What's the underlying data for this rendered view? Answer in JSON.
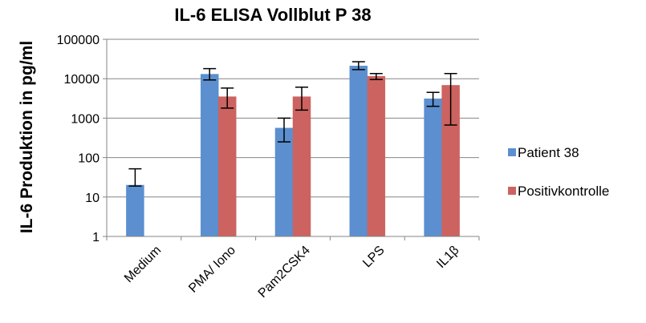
{
  "chart_data": {
    "type": "bar",
    "title": "IL-6 ELISA Vollblut P 38",
    "xlabel": "",
    "ylabel": "IL-6 Produktion in pg/ml",
    "yscale": "log",
    "ylim": [
      1,
      100000
    ],
    "yticks": [
      "1",
      "10",
      "100",
      "1000",
      "10000",
      "100000"
    ],
    "grid": true,
    "legend_position": "right",
    "categories": [
      "Medium",
      "PMA/ Iono",
      "Pam2CSK4",
      "LPS",
      "IL1β"
    ],
    "series": [
      {
        "name": "Patient 38",
        "color": "#5b8fd0",
        "values": [
          20,
          13000,
          560,
          21000,
          3100
        ],
        "err_low": [
          19,
          9300,
          250,
          17000,
          2000
        ],
        "err_high": [
          52,
          18000,
          1000,
          27000,
          4500
        ]
      },
      {
        "name": "Positivkontrolle",
        "color": "#cc6360",
        "values": [
          null,
          3500,
          3500,
          11500,
          6800
        ],
        "err_low": [
          null,
          1800,
          1600,
          9500,
          670
        ],
        "err_high": [
          null,
          5800,
          6100,
          13500,
          13500
        ]
      }
    ]
  }
}
